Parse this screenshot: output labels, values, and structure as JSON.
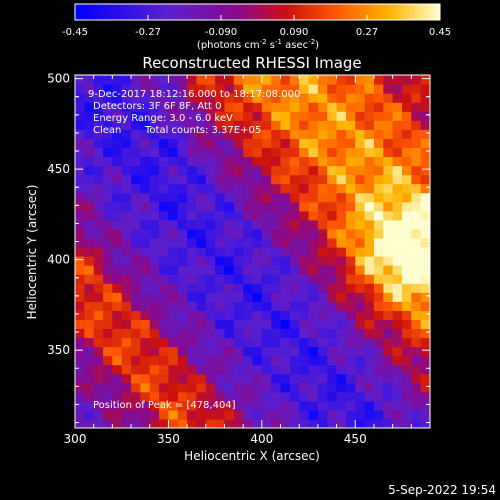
{
  "chart_data": {
    "type": "heatmap",
    "title": "Reconstructed RHESSI Image",
    "xlabel": "Heliocentric X (arcsec)",
    "ylabel": "Heliocentric Y (arcsec)",
    "xlim": [
      300,
      490
    ],
    "ylim": [
      307,
      502
    ],
    "x_ticks": [
      "300",
      "350",
      "400",
      "450"
    ],
    "y_ticks": [
      "350",
      "400",
      "450",
      "500"
    ],
    "colorbar": {
      "range": [
        -0.45,
        0.45
      ],
      "ticks": [
        "-0.45",
        "-0.27",
        "-0.090",
        "0.090",
        "0.27",
        "0.45"
      ],
      "unit_label": "(photons cm",
      "unit_exp1": "-2",
      "unit_mid": " s",
      "unit_exp2": "-1",
      "unit_mid2": " asec",
      "unit_exp3": "-2",
      "unit_end": ")"
    },
    "annotations": {
      "time": "9-Dec-2017 18:12:16.000 to 18:17:08.000",
      "detectors": "Detectors: 3F 6F 8F, Att 0",
      "energy": "Energy Range: 3.0 - 6.0 keV",
      "method": "Clean",
      "counts": "Total counts: 3.37E+05",
      "peak": "Position of Peak = [478,404]"
    },
    "peak": [
      478,
      404
    ],
    "grid": false
  },
  "footer": {
    "date": "5-Sep-2022 19:54"
  }
}
